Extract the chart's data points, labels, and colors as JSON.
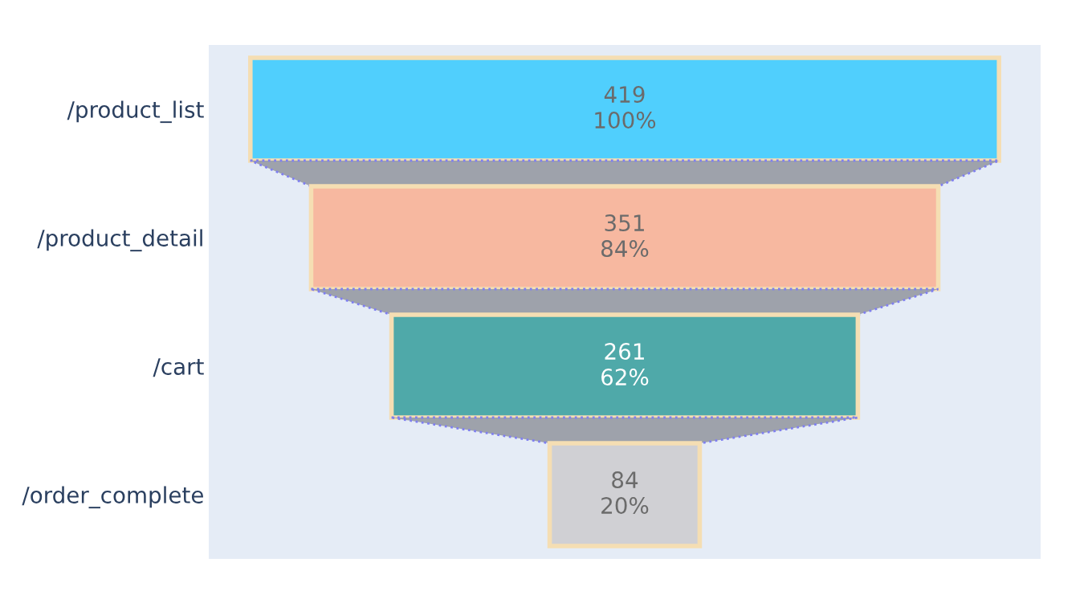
{
  "chart_data": {
    "type": "other",
    "categories": [
      "/product_list",
      "/product_detail",
      "/cart",
      "/order_complete"
    ],
    "values": [
      419,
      351,
      261,
      84
    ],
    "data_labels": true,
    "annotations": [
      "100%",
      "84%",
      "62%",
      "20%"
    ],
    "colors": [
      "#50cffd",
      "#f7b8a0",
      "#4fa9a9",
      "#d0d0d4"
    ]
  }
}
